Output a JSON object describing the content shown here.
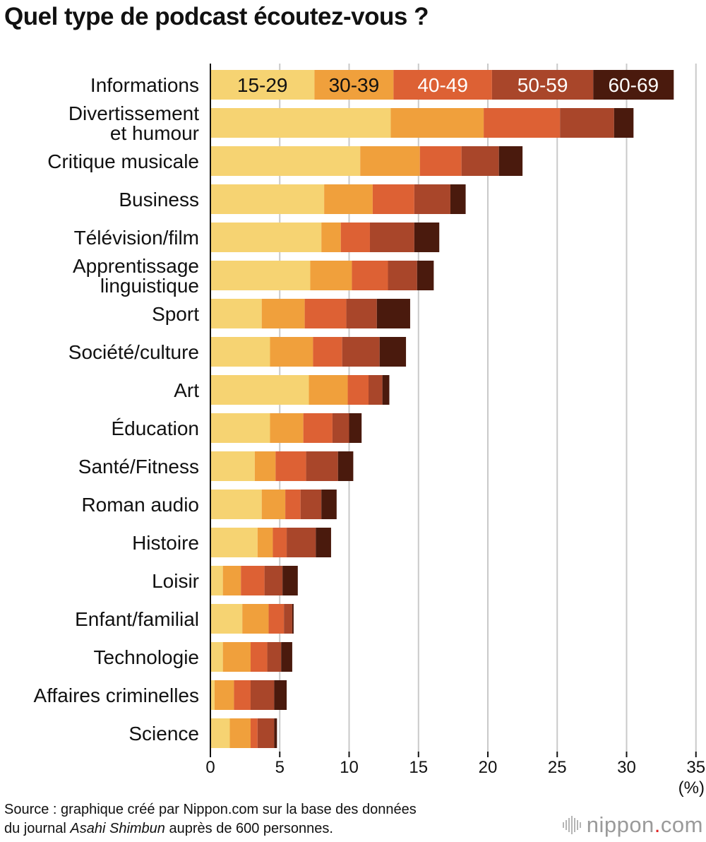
{
  "chart_data": {
    "type": "bar",
    "orientation": "horizontal",
    "stacked": true,
    "title": "Quel type de podcast écoutez-vous ?",
    "unit": "(%)",
    "xlim": [
      0,
      35
    ],
    "xticks": [
      "0",
      "5",
      "10",
      "15",
      "20",
      "25",
      "30",
      "35"
    ],
    "grid": true,
    "legend_position": "inside-top-bar",
    "categories": [
      [
        "Informations"
      ],
      [
        "Divertissement",
        "et humour"
      ],
      [
        "Critique musicale"
      ],
      [
        "Business"
      ],
      [
        "Télévision/film"
      ],
      [
        "Apprentissage",
        "linguistique"
      ],
      [
        "Sport"
      ],
      [
        "Société/culture"
      ],
      [
        "Art"
      ],
      [
        "Éducation"
      ],
      [
        "Santé/Fitness"
      ],
      [
        "Roman audio"
      ],
      [
        "Histoire"
      ],
      [
        "Loisir"
      ],
      [
        "Enfant/familial"
      ],
      [
        "Technologie"
      ],
      [
        "Affaires criminelles"
      ],
      [
        "Science"
      ]
    ],
    "series": [
      {
        "name": "15-29",
        "color": "#f6d372",
        "label_color": "#111111",
        "values": [
          7.5,
          13.0,
          10.8,
          8.2,
          8.0,
          7.2,
          3.7,
          4.3,
          7.1,
          4.3,
          3.2,
          3.7,
          3.4,
          0.9,
          2.3,
          0.9,
          0.3,
          1.4
        ]
      },
      {
        "name": "30-39",
        "color": "#f0a03c",
        "label_color": "#111111",
        "values": [
          5.7,
          6.7,
          4.3,
          3.5,
          1.4,
          3.0,
          3.1,
          3.1,
          2.8,
          2.4,
          1.5,
          1.7,
          1.1,
          1.3,
          1.9,
          2.0,
          1.4,
          1.5
        ]
      },
      {
        "name": "40-49",
        "color": "#dd6134",
        "label_color": "#ffffff",
        "values": [
          7.1,
          5.5,
          3.0,
          3.0,
          2.1,
          2.6,
          3.0,
          2.1,
          1.5,
          2.1,
          2.2,
          1.1,
          1.0,
          1.7,
          1.1,
          1.2,
          1.2,
          0.5
        ]
      },
      {
        "name": "50-59",
        "color": "#a9462a",
        "label_color": "#ffffff",
        "values": [
          7.3,
          3.9,
          2.7,
          2.6,
          3.2,
          2.1,
          2.2,
          2.7,
          1.0,
          1.2,
          2.3,
          1.5,
          2.1,
          1.3,
          0.6,
          1.0,
          1.7,
          1.2
        ]
      },
      {
        "name": "60-69",
        "color": "#4a1a0d",
        "label_color": "#ffffff",
        "values": [
          5.8,
          1.4,
          1.7,
          1.1,
          1.8,
          1.2,
          2.4,
          1.9,
          0.5,
          0.9,
          1.1,
          1.1,
          1.1,
          1.1,
          0.1,
          0.8,
          0.9,
          0.2
        ]
      }
    ]
  },
  "source": {
    "line1": "Source : graphique créé par Nippon.com sur la base des données",
    "line2_prefix": "du journal ",
    "line2_italic": "Asahi Shimbun",
    "line2_suffix": " auprès de 600 personnes."
  },
  "logo": {
    "name": "nippon",
    "dot": ".",
    "suffix": "com"
  }
}
